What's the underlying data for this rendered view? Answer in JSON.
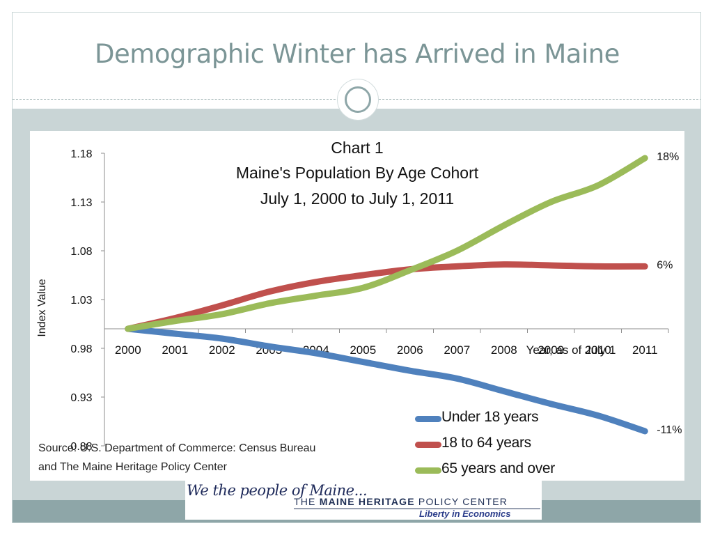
{
  "slide": {
    "title": "Demographic Winter has Arrived in Maine",
    "source_note": "Source: U.S. Department of Commerce: Census Bureau and The Maine Heritage Policy Center",
    "banner": {
      "script_text": "We the people of Maine...",
      "org_prefix": "THE",
      "org_bold": "MAINE HERITAGE",
      "org_suffix": "POLICY CENTER",
      "tagline": "Liberty in Economics"
    },
    "colors": {
      "title": "#7b9596",
      "band": "#c9d5d6",
      "bottom_band": "#8ea6a8"
    }
  },
  "chart_data": {
    "type": "line",
    "title": "Chart 1",
    "subtitle_lines": [
      "Maine's Population By Age Cohort",
      "July 1, 2000 to July 1, 2011"
    ],
    "ylabel": "Index Value",
    "xlabel": "Year, as of July 1",
    "x": [
      "2000",
      "2001",
      "2002",
      "2003",
      "2004",
      "2005",
      "2006",
      "2007",
      "2008",
      "2009",
      "2010",
      "2011"
    ],
    "y_ticks": [
      "1.18",
      "1.13",
      "1.08",
      "1.03",
      "0.98",
      "0.93",
      "0.88"
    ],
    "ylim": [
      0.88,
      1.18
    ],
    "x_axis_crosses_at": 1.0,
    "grid": false,
    "legend_position": "bottom-right",
    "series": [
      {
        "name": "Under 18 years",
        "color": "#4f81bd",
        "values": [
          1.0,
          0.995,
          0.99,
          0.982,
          0.975,
          0.966,
          0.957,
          0.949,
          0.936,
          0.923,
          0.911,
          0.895
        ],
        "end_label": "-11%"
      },
      {
        "name": "18 to 64 years",
        "color": "#c0504d",
        "values": [
          1.0,
          1.011,
          1.024,
          1.038,
          1.048,
          1.055,
          1.061,
          1.064,
          1.066,
          1.065,
          1.064,
          1.064
        ],
        "end_label": "6%"
      },
      {
        "name": "65 years and over",
        "color": "#9bbb59",
        "values": [
          1.0,
          1.008,
          1.015,
          1.026,
          1.034,
          1.042,
          1.06,
          1.08,
          1.106,
          1.13,
          1.147,
          1.175
        ],
        "end_label": "18%"
      }
    ]
  }
}
